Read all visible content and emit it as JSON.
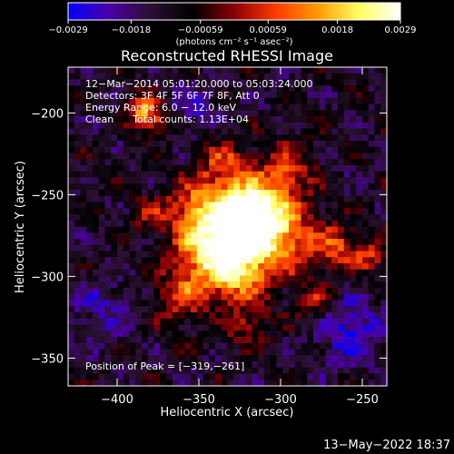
{
  "chart_data": {
    "type": "heatmap",
    "title": "Reconstructed RHESSI Image",
    "xlabel": "Heliocentric X (arcsec)",
    "ylabel": "Heliocentric Y (arcsec)",
    "xlim": [
      -430,
      -235
    ],
    "ylim": [
      -367,
      -172
    ],
    "x_ticks": [
      -400,
      -350,
      -300,
      -250
    ],
    "y_ticks": [
      -200,
      -250,
      -300,
      -350
    ],
    "x_tick_labels": [
      "−400",
      "−350",
      "−300",
      "−250"
    ],
    "y_tick_labels": [
      "−200",
      "−250",
      "−300",
      "−350"
    ],
    "colorbar": {
      "range": [
        -0.0029,
        0.0029
      ],
      "tick_values": [
        -0.0029,
        -0.0018,
        -0.00059,
        0.00059,
        0.0018,
        0.0029
      ],
      "tick_labels": [
        "−0.0029",
        "−0.0018",
        "−0.00059",
        "0.00059",
        "0.0018",
        "0.0029"
      ],
      "units": "(photons cm⁻² s⁻¹ asec⁻²)",
      "colormap": [
        "#0000ff",
        "#4b00a6",
        "#2a1030",
        "#000000",
        "#8a0008",
        "#ff3a00",
        "#ff9a00",
        "#ffff60",
        "#ffffff"
      ]
    },
    "annotations": {
      "time": "12−Mar−2014 05:01:20.000 to 05:03:24.000",
      "detectors": "Detectors: 3F 4F 5F 6F 7F 8F, Att 0",
      "energy": "Energy Range: 6.0 − 12.0 keV",
      "method": "Clean      Total counts: 1.13E+04",
      "peak": "Position of Peak = [−319,−261]"
    },
    "peak_position": [
      -319,
      -261
    ],
    "map_model": {
      "background": -0.0012,
      "sources": [
        {
          "x": -319,
          "y": -261,
          "sigma": 14,
          "amp": 0.0041
        },
        {
          "x": -340,
          "y": -282,
          "sigma": 16,
          "amp": 0.0034
        },
        {
          "x": -325,
          "y": -297,
          "sigma": 13,
          "amp": 0.0022
        },
        {
          "x": -300,
          "y": -275,
          "sigma": 16,
          "amp": 0.0024
        },
        {
          "x": -352,
          "y": -258,
          "sigma": 12,
          "amp": 0.0018
        },
        {
          "x": -360,
          "y": -312,
          "sigma": 12,
          "amp": 0.0016
        },
        {
          "x": -296,
          "y": -235,
          "sigma": 11,
          "amp": 0.0017
        },
        {
          "x": -335,
          "y": -232,
          "sigma": 12,
          "amp": 0.0016
        },
        {
          "x": -265,
          "y": -282,
          "sigma": 9,
          "amp": 0.0017
        },
        {
          "x": -245,
          "y": -287,
          "sigma": 7,
          "amp": 0.0016
        },
        {
          "x": -278,
          "y": -315,
          "sigma": 9,
          "amp": 0.0012
        },
        {
          "x": -385,
          "y": -198,
          "sigma": 7,
          "amp": 0.0023
        },
        {
          "x": -375,
          "y": -205,
          "sigma": 6,
          "amp": 0.0016
        },
        {
          "x": -320,
          "y": -330,
          "sigma": 9,
          "amp": 0.0013
        },
        {
          "x": -380,
          "y": -262,
          "sigma": 8,
          "amp": 0.001
        },
        {
          "x": -258,
          "y": -333,
          "sigma": 14,
          "amp": -0.0015
        },
        {
          "x": -355,
          "y": -198,
          "sigma": 12,
          "amp": -0.0009
        },
        {
          "x": -410,
          "y": -320,
          "sigma": 14,
          "amp": -0.0008
        }
      ]
    }
  },
  "footer": {
    "timestamp": "13−May−2022 18:37"
  }
}
